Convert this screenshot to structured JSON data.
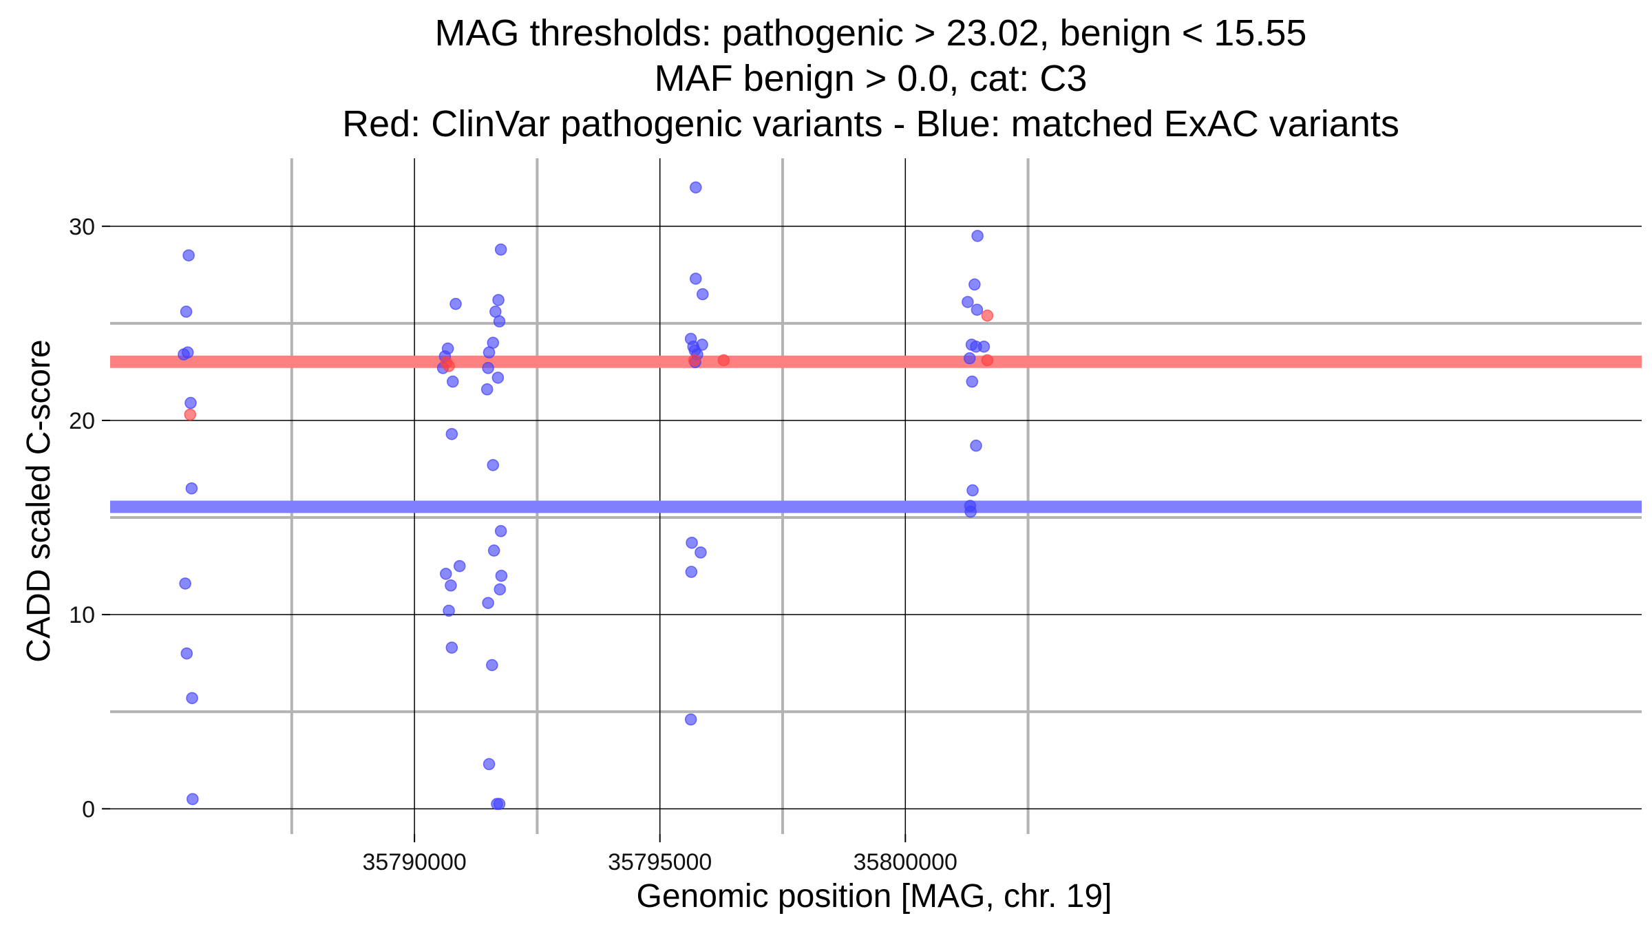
{
  "chart_data": {
    "type": "scatter",
    "title_lines": [
      "MAG thresholds: pathogenic > 23.02, benign < 15.55",
      "MAF benign > 0.0, cat: C3",
      "Red: ClinVar pathogenic variants - Blue: matched ExAC variants"
    ],
    "xlabel": "Genomic position [MAG, chr. 19]",
    "ylabel": "CADD scaled C-score",
    "xlim": [
      35783800,
      35815000
    ],
    "ylim": [
      -1.3,
      33.5
    ],
    "x_ticks": [
      35790000,
      35795000,
      35800000
    ],
    "x_tick_labels": [
      "35790000",
      "35795000",
      "35800000"
    ],
    "x_minor_gridlines": [
      35787500,
      35792500,
      35797500,
      35802500
    ],
    "y_ticks": [
      0,
      10,
      20,
      30
    ],
    "y_tick_labels": [
      "0",
      "10",
      "20",
      "30"
    ],
    "y_minor_gridlines": [
      5,
      15,
      25
    ],
    "grid": true,
    "thresholds": [
      {
        "name": "pathogenic",
        "value": 23.02,
        "color": "#ff8080"
      },
      {
        "name": "benign",
        "value": 15.55,
        "color": "#8080ff"
      }
    ],
    "series": [
      {
        "key": "clinvar",
        "color": "#ff4040",
        "points": [
          [
            35785430,
            20.3
          ],
          [
            35790700,
            22.8
          ],
          [
            35790650,
            23.0
          ],
          [
            35795700,
            23.1
          ],
          [
            35796300,
            23.1
          ],
          [
            35801670,
            25.4
          ],
          [
            35801670,
            23.1
          ]
        ]
      },
      {
        "key": "exac",
        "color": "#4040ff",
        "points": [
          [
            35785400,
            28.5
          ],
          [
            35785350,
            25.6
          ],
          [
            35785300,
            23.4
          ],
          [
            35785380,
            23.5
          ],
          [
            35785440,
            20.9
          ],
          [
            35785460,
            16.5
          ],
          [
            35785330,
            11.6
          ],
          [
            35785360,
            8.0
          ],
          [
            35785470,
            5.7
          ],
          [
            35785480,
            0.5
          ],
          [
            35790580,
            22.7
          ],
          [
            35790620,
            23.3
          ],
          [
            35790680,
            23.7
          ],
          [
            35790780,
            22.0
          ],
          [
            35790760,
            19.3
          ],
          [
            35790840,
            26.0
          ],
          [
            35790640,
            12.1
          ],
          [
            35790740,
            11.5
          ],
          [
            35790700,
            10.2
          ],
          [
            35790760,
            8.3
          ],
          [
            35790920,
            12.5
          ],
          [
            35791520,
            23.5
          ],
          [
            35791600,
            24.0
          ],
          [
            35791500,
            22.7
          ],
          [
            35791700,
            22.2
          ],
          [
            35791480,
            21.6
          ],
          [
            35791600,
            17.7
          ],
          [
            35791650,
            25.6
          ],
          [
            35791710,
            26.2
          ],
          [
            35791730,
            25.1
          ],
          [
            35791760,
            28.8
          ],
          [
            35791760,
            14.3
          ],
          [
            35791620,
            13.3
          ],
          [
            35791770,
            12.0
          ],
          [
            35791740,
            11.3
          ],
          [
            35791500,
            10.6
          ],
          [
            35791580,
            7.4
          ],
          [
            35791520,
            2.3
          ],
          [
            35791680,
            0.25
          ],
          [
            35791730,
            0.25
          ],
          [
            35795730,
            32.0
          ],
          [
            35795730,
            27.3
          ],
          [
            35795870,
            26.5
          ],
          [
            35795630,
            24.2
          ],
          [
            35795680,
            23.8
          ],
          [
            35795710,
            23.6
          ],
          [
            35795760,
            23.4
          ],
          [
            35795860,
            23.9
          ],
          [
            35795720,
            23.0
          ],
          [
            35795650,
            13.7
          ],
          [
            35795830,
            13.2
          ],
          [
            35795640,
            12.2
          ],
          [
            35795630,
            4.6
          ],
          [
            35801470,
            29.5
          ],
          [
            35801410,
            27.0
          ],
          [
            35801270,
            26.1
          ],
          [
            35801460,
            25.7
          ],
          [
            35801350,
            23.9
          ],
          [
            35801440,
            23.8
          ],
          [
            35801600,
            23.8
          ],
          [
            35801310,
            23.2
          ],
          [
            35801360,
            22.0
          ],
          [
            35801440,
            18.7
          ],
          [
            35801370,
            16.4
          ],
          [
            35801320,
            15.6
          ],
          [
            35801330,
            15.3
          ]
        ]
      }
    ]
  }
}
